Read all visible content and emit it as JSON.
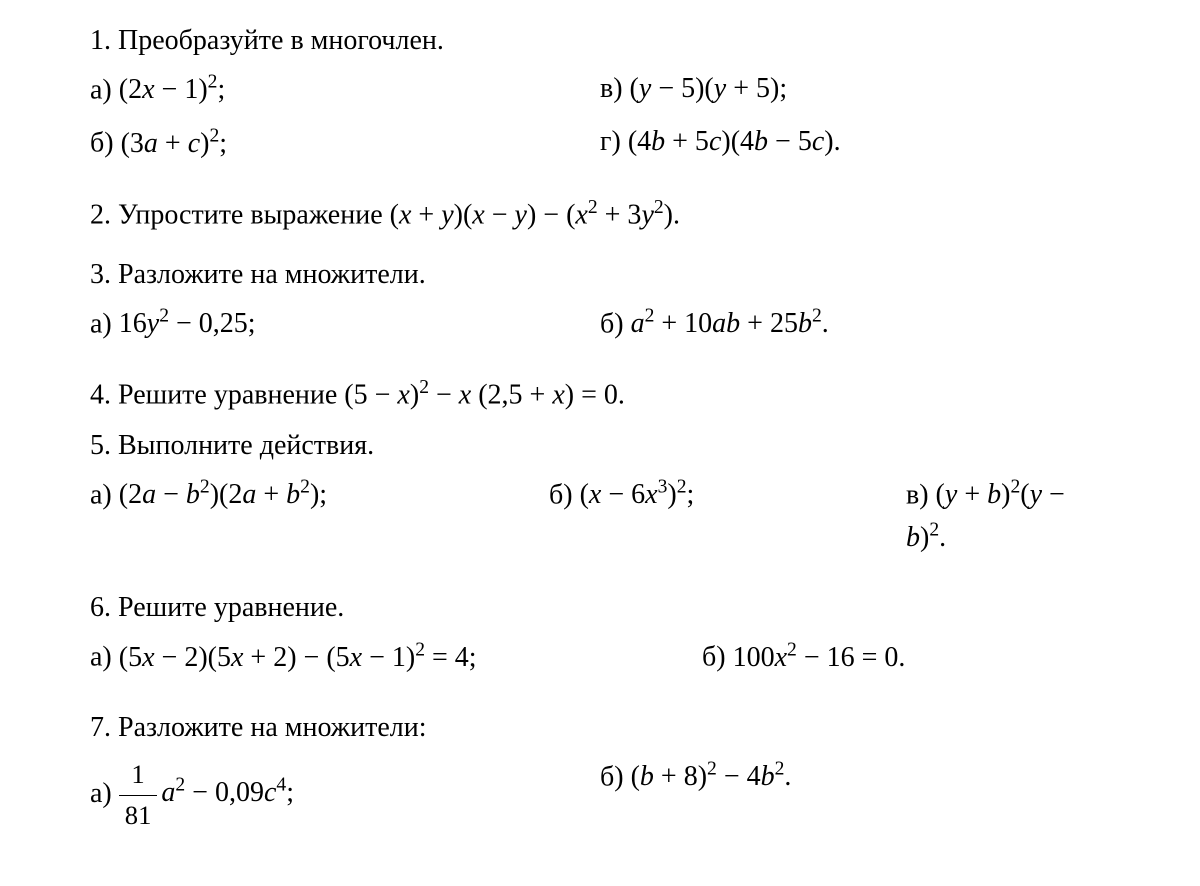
{
  "problems": {
    "p1": {
      "title": "1. Преобразуйте в многочлен.",
      "a_label": "а) ",
      "a_expr": "(2<span class='italic'>x</span> − 1)<sup>2</sup>;",
      "b_label": "в) ",
      "b_expr": "(<span class='italic'>y</span> − 5)(<span class='italic'>y</span> + 5);",
      "c_label": "б) ",
      "c_expr": "(3<span class='italic'>a</span> + <span class='italic'>c</span>)<sup>2</sup>;",
      "d_label": "г) ",
      "d_expr": "(4<span class='italic'>b</span> + 5<span class='italic'>c</span>)(4<span class='italic'>b</span> − 5<span class='italic'>c</span>)."
    },
    "p2": {
      "text": "2. Упростите выражение (<span class='italic'>x</span> + <span class='italic'>y</span>)(<span class='italic'>x</span> − <span class='italic'>y</span>) − (<span class='italic'>x</span><sup>2</sup> + 3<span class='italic'>y</span><sup>2</sup>)."
    },
    "p3": {
      "title": "3. Разложите на множители.",
      "a_label": "а) ",
      "a_expr": "16<span class='italic'>y</span><sup>2</sup> − 0,25;",
      "b_label": "б) ",
      "b_expr": "<span class='italic'>a</span><sup>2</sup> + 10<span class='italic'>ab</span> + 25<span class='italic'>b</span><sup>2</sup>."
    },
    "p4": {
      "text": "4. Решите уравнение (5 − <span class='italic'>x</span>)<sup>2</sup> − <span class='italic'>x</span> (2,5 + <span class='italic'>x</span>) = 0."
    },
    "p5": {
      "title": "5. Выполните действия.",
      "a_label": "а) ",
      "a_expr": "(2<span class='italic'>a</span> − <span class='italic'>b</span><sup>2</sup>)(2<span class='italic'>a</span> + <span class='italic'>b</span><sup>2</sup>);",
      "b_label": "б) ",
      "b_expr": "(<span class='italic'>x</span> − 6<span class='italic'>x</span><sup>3</sup>)<sup>2</sup>;",
      "c_label": "в) ",
      "c_expr": "(<span class='italic'>y</span> + <span class='italic'>b</span>)<sup>2</sup>(<span class='italic'>y</span> − <span class='italic'>b</span>)<sup>2</sup>."
    },
    "p6": {
      "title": "6. Решите уравнение.",
      "a_label": "а) ",
      "a_expr": "(5<span class='italic'>x</span> − 2)(5<span class='italic'>x</span> + 2) − (5<span class='italic'>x</span> − 1)<sup>2</sup> = 4;",
      "b_label": "б) ",
      "b_expr": "100<span class='italic'>x</span><sup>2</sup> − 16 = 0."
    },
    "p7": {
      "title": "7. Разложите на множители:",
      "a_label": "а) ",
      "a_frac_num": "1",
      "a_frac_den": "81",
      "a_expr_tail": "<span class='italic'>a</span><sup>2</sup> − 0,09<span class='italic'>c</span><sup>4</sup>;",
      "b_label": "б) ",
      "b_expr": "(<span class='italic'>b</span> + 8)<sup>2</sup> − 4<span class='italic'>b</span><sup>2</sup>."
    }
  }
}
